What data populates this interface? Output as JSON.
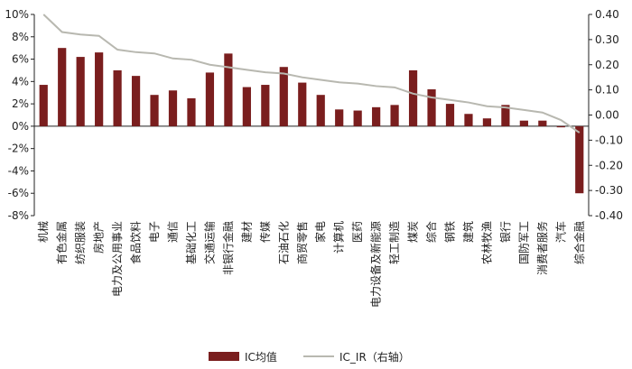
{
  "chart_data": {
    "type": "bar",
    "categories": [
      "机械",
      "有色金属",
      "纺织服装",
      "房地产",
      "电力及公用事业",
      "食品饮料",
      "电子",
      "通信",
      "基础化工",
      "交通运输",
      "非银行金融",
      "建材",
      "传媒",
      "石油石化",
      "商贸零售",
      "家电",
      "计算机",
      "医药",
      "电力设备及新能源",
      "轻工制造",
      "煤炭",
      "综合",
      "钢铁",
      "建筑",
      "农林牧渔",
      "银行",
      "国防军工",
      "消费者服务",
      "汽车",
      "综合金融"
    ],
    "series": [
      {
        "name": "IC均值",
        "type": "bar",
        "axis": "left",
        "color": "#7a1e1e",
        "values": [
          3.7,
          7.0,
          6.2,
          6.6,
          5.0,
          4.5,
          2.8,
          3.2,
          2.5,
          4.8,
          6.5,
          3.5,
          3.7,
          5.3,
          3.9,
          2.8,
          1.5,
          1.4,
          1.7,
          1.9,
          5.0,
          3.3,
          2.0,
          1.1,
          0.7,
          1.9,
          0.5,
          0.5,
          -0.1,
          -6.0
        ]
      },
      {
        "name": "IC_IR（右轴）",
        "type": "line",
        "axis": "right",
        "color": "#b8b8b0",
        "values": [
          0.4,
          0.33,
          0.32,
          0.315,
          0.26,
          0.25,
          0.245,
          0.225,
          0.22,
          0.2,
          0.19,
          0.18,
          0.17,
          0.165,
          0.15,
          0.14,
          0.13,
          0.125,
          0.115,
          0.11,
          0.085,
          0.07,
          0.06,
          0.05,
          0.035,
          0.03,
          0.02,
          0.01,
          -0.02,
          -0.07
        ]
      }
    ],
    "y_left": {
      "ticks": [
        "-8%",
        "-6%",
        "-4%",
        "-2%",
        "0%",
        "2%",
        "4%",
        "6%",
        "8%",
        "10%"
      ],
      "min": -8,
      "max": 10
    },
    "y_right": {
      "ticks": [
        "-0.40",
        "-0.30",
        "-0.20",
        "-0.10",
        "0.00",
        "0.10",
        "0.20",
        "0.30",
        "0.40"
      ],
      "min": -0.4,
      "max": 0.4
    },
    "legend": {
      "position": "bottom",
      "items": [
        "IC均值",
        "IC_IR（右轴）"
      ]
    },
    "grid": false
  }
}
